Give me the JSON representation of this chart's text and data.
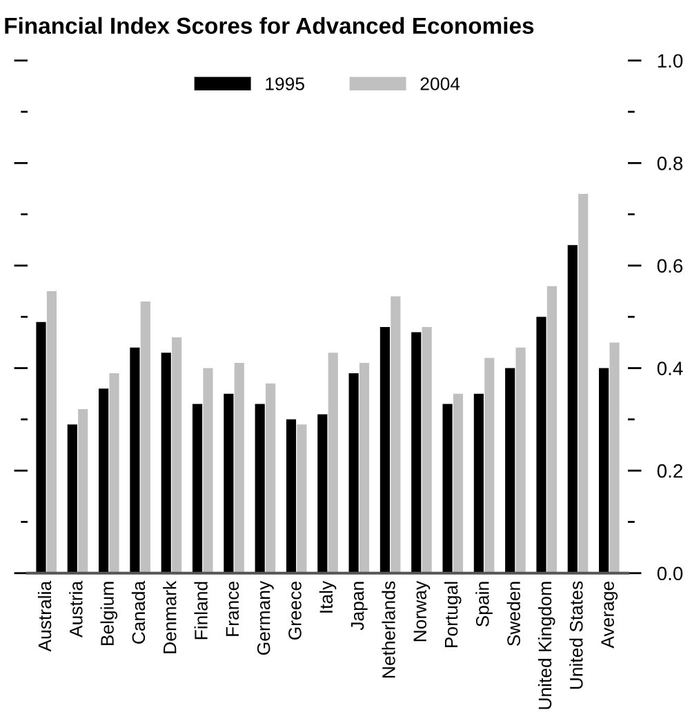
{
  "chart_data": {
    "type": "bar",
    "title": "Financial Index Scores for Advanced Economies",
    "categories": [
      "Australia",
      "Austria",
      "Belgium",
      "Canada",
      "Denmark",
      "Finland",
      "France",
      "Germany",
      "Greece",
      "Italy",
      "Japan",
      "Netherlands",
      "Norway",
      "Portugal",
      "Spain",
      "Sweden",
      "United Kingdom",
      "United States",
      "Average"
    ],
    "series": [
      {
        "name": "1995",
        "color": "#000000",
        "values": [
          0.49,
          0.29,
          0.36,
          0.44,
          0.43,
          0.33,
          0.35,
          0.33,
          0.3,
          0.31,
          0.39,
          0.48,
          0.47,
          0.33,
          0.35,
          0.4,
          0.5,
          0.64,
          0.4
        ]
      },
      {
        "name": "2004",
        "color": "#c0c0c0",
        "values": [
          0.55,
          0.32,
          0.39,
          0.53,
          0.46,
          0.4,
          0.41,
          0.37,
          0.29,
          0.43,
          0.41,
          0.54,
          0.48,
          0.35,
          0.42,
          0.44,
          0.56,
          0.74,
          0.45
        ]
      }
    ],
    "ylim": [
      0,
      1.0
    ],
    "yticks": [
      {
        "value": 0,
        "label": "0.0"
      },
      {
        "value": 0.1,
        "label": null
      },
      {
        "value": 0.2,
        "label": "0.2"
      },
      {
        "value": 0.3,
        "label": null
      },
      {
        "value": 0.4,
        "label": "0.4"
      },
      {
        "value": 0.5,
        "label": null
      },
      {
        "value": 0.6,
        "label": "0.6"
      },
      {
        "value": 0.7,
        "label": null
      },
      {
        "value": 0.8,
        "label": "0.8"
      },
      {
        "value": 0.9,
        "label": null
      },
      {
        "value": 1.0,
        "label": "1.0"
      }
    ],
    "grid": false,
    "legend": "top"
  }
}
